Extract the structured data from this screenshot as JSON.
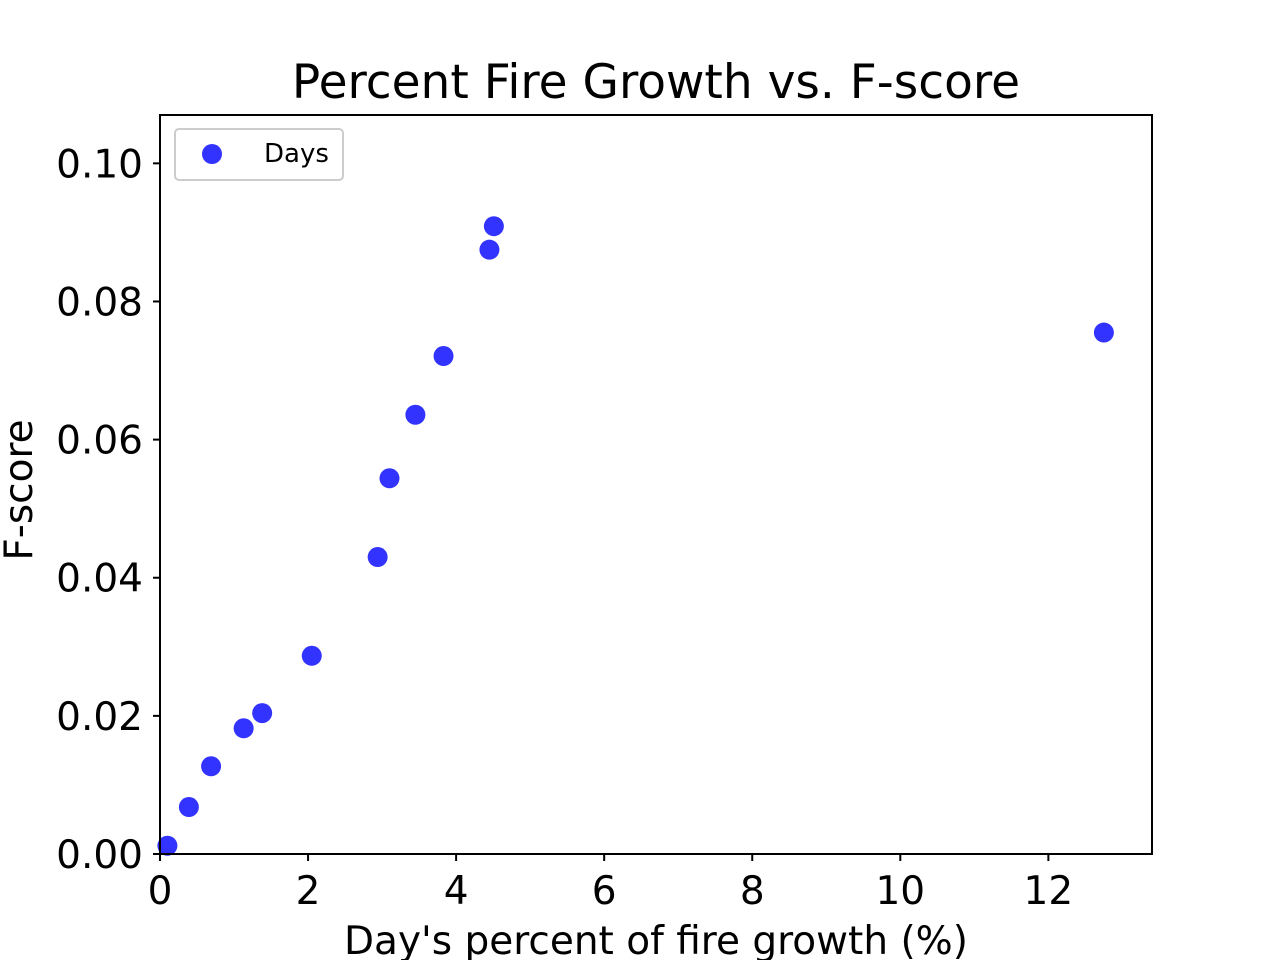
{
  "chart_data": {
    "type": "scatter",
    "title": "Percent Fire Growth vs. F-score",
    "xlabel": "Day's percent of fire growth (%)",
    "ylabel": "F-score",
    "xlim": [
      0,
      13.4
    ],
    "ylim": [
      0,
      0.107
    ],
    "x_ticks": [
      0,
      2,
      4,
      6,
      8,
      10,
      12
    ],
    "x_tick_labels": [
      "0",
      "2",
      "4",
      "6",
      "8",
      "10",
      "12"
    ],
    "y_ticks": [
      0,
      0.02,
      0.04,
      0.06,
      0.08,
      0.1
    ],
    "y_tick_labels": [
      "0.00",
      "0.02",
      "0.04",
      "0.06",
      "0.08",
      "0.10"
    ],
    "grid": false,
    "legend_position": "top-left",
    "series": [
      {
        "name": "Days",
        "color": "#3333ff",
        "marker": "circle",
        "points": [
          {
            "x": 0.1,
            "y": 0.0012
          },
          {
            "x": 0.39,
            "y": 0.0068
          },
          {
            "x": 0.69,
            "y": 0.0127
          },
          {
            "x": 1.13,
            "y": 0.0182
          },
          {
            "x": 1.38,
            "y": 0.0204
          },
          {
            "x": 2.05,
            "y": 0.0287
          },
          {
            "x": 2.94,
            "y": 0.043
          },
          {
            "x": 3.1,
            "y": 0.0544
          },
          {
            "x": 3.45,
            "y": 0.0636
          },
          {
            "x": 3.83,
            "y": 0.0721
          },
          {
            "x": 4.45,
            "y": 0.0875
          },
          {
            "x": 4.51,
            "y": 0.0909
          },
          {
            "x": 12.75,
            "y": 0.0755
          }
        ]
      }
    ]
  }
}
